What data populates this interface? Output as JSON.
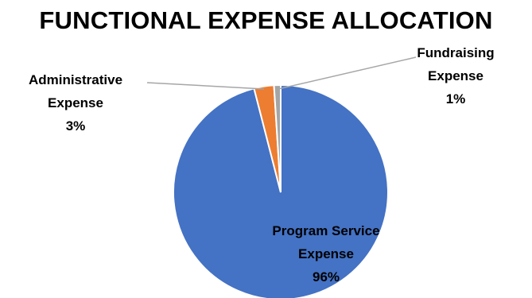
{
  "chart_data": {
    "type": "pie",
    "title": "FUNCTIONAL EXPENSE ALLOCATION",
    "slices": [
      {
        "name": "Program Service Expense",
        "label_lines": [
          "Program Service",
          "Expense"
        ],
        "pct_label": "96%",
        "value": 96,
        "color": "#4472C4"
      },
      {
        "name": "Administrative Expense",
        "label_lines": [
          "Administrative",
          "Expense"
        ],
        "pct_label": "3%",
        "value": 3,
        "color": "#ED7D31"
      },
      {
        "name": "Fundraising Expense",
        "label_lines": [
          "Fundraising",
          "Expense"
        ],
        "pct_label": "1%",
        "value": 1,
        "color": "#A5A5A5"
      }
    ],
    "legend": "none",
    "data_labels": "category name and percentage"
  }
}
